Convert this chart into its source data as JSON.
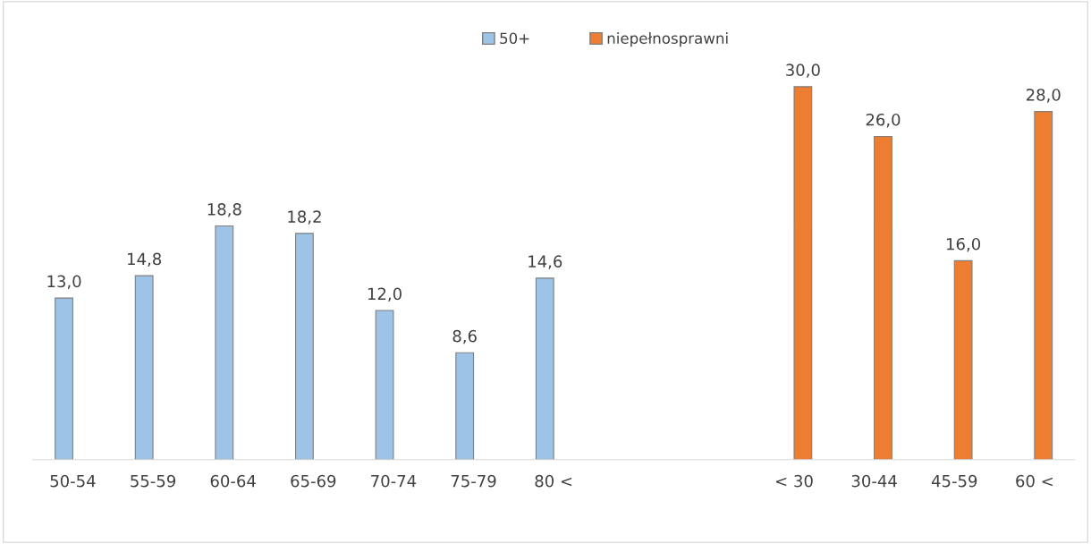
{
  "chart_data": {
    "type": "bar",
    "categories": [
      "50-54",
      "55-59",
      "60-64",
      "65-69",
      "70-74",
      "75-79",
      "80 <",
      null,
      null,
      "< 30",
      "30-44",
      "45-59",
      "60 <"
    ],
    "series": [
      {
        "name": "50+",
        "color": "#9dc3e6",
        "values": [
          13.0,
          14.8,
          18.8,
          18.2,
          12.0,
          8.6,
          14.6,
          null,
          null,
          null,
          null,
          null,
          null
        ],
        "value_labels": [
          "13,0",
          "14,8",
          "18,8",
          "18,2",
          "12,0",
          "8,6",
          "14,6",
          null,
          null,
          null,
          null,
          null,
          null
        ]
      },
      {
        "name": "niepełnosprawni",
        "color": "#ed7d31",
        "values": [
          null,
          null,
          null,
          null,
          null,
          null,
          null,
          null,
          null,
          30.0,
          26.0,
          16.0,
          28.0
        ],
        "value_labels": [
          null,
          null,
          null,
          null,
          null,
          null,
          null,
          null,
          null,
          "30,0",
          "26,0",
          "16,0",
          "28,0"
        ]
      }
    ],
    "legend": "top",
    "grid": false,
    "tick_labels": "x"
  }
}
